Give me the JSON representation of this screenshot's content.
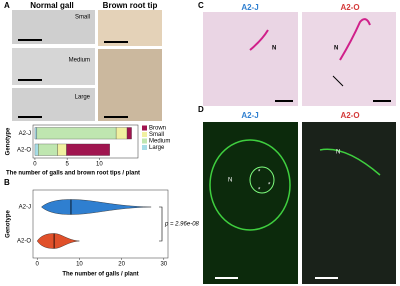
{
  "panel_a": {
    "label": "A",
    "photo_titles": [
      "Normal gall",
      "Brown root tip"
    ],
    "size_labels": [
      "Small",
      "Medium",
      "Large"
    ],
    "chart_data": {
      "type": "stacked-barh",
      "ylabel": "Genotype",
      "xlabel": "The number of galls and brown root tips / plant",
      "categories": [
        "A2-J",
        "A2-O"
      ],
      "series": [
        {
          "name": "Large",
          "color": "#a6dce6",
          "values": [
            0.3,
            0.5
          ]
        },
        {
          "name": "Medium",
          "color": "#bfe6b0",
          "values": [
            12.3,
            3
          ]
        },
        {
          "name": "Small",
          "color": "#f0f0a0",
          "values": [
            1.7,
            1.4
          ]
        },
        {
          "name": "Brown",
          "color": "#a0154f",
          "values": [
            0.7,
            6.7
          ]
        }
      ],
      "legend_order": [
        3,
        2,
        1,
        0
      ],
      "xlim": [
        -0.3,
        16
      ],
      "xticks": [
        0,
        5,
        10
      ]
    }
  },
  "panel_b": {
    "label": "B",
    "chart_data": {
      "type": "violin",
      "ylabel": "Genotype",
      "xlabel": "The number of galls / plant",
      "categories": [
        "A2-J",
        "A2-O"
      ],
      "min": [
        1,
        0
      ],
      "median": [
        8,
        4
      ],
      "max": [
        27,
        10
      ],
      "colors": [
        "#2f7fd0",
        "#e0502a"
      ],
      "xlim": [
        -1,
        31
      ],
      "xticks": [
        0,
        10,
        20,
        30
      ],
      "annotation": "p = 2.96e-08"
    }
  },
  "panel_c": {
    "label": "C",
    "titles": [
      "A2-J",
      "A2-O"
    ],
    "marks": [
      "N",
      "N"
    ]
  },
  "panel_d": {
    "label": "D",
    "titles": [
      "A2-J",
      "A2-O"
    ],
    "marks": [
      "N",
      "*",
      "*",
      "*",
      "N"
    ]
  }
}
